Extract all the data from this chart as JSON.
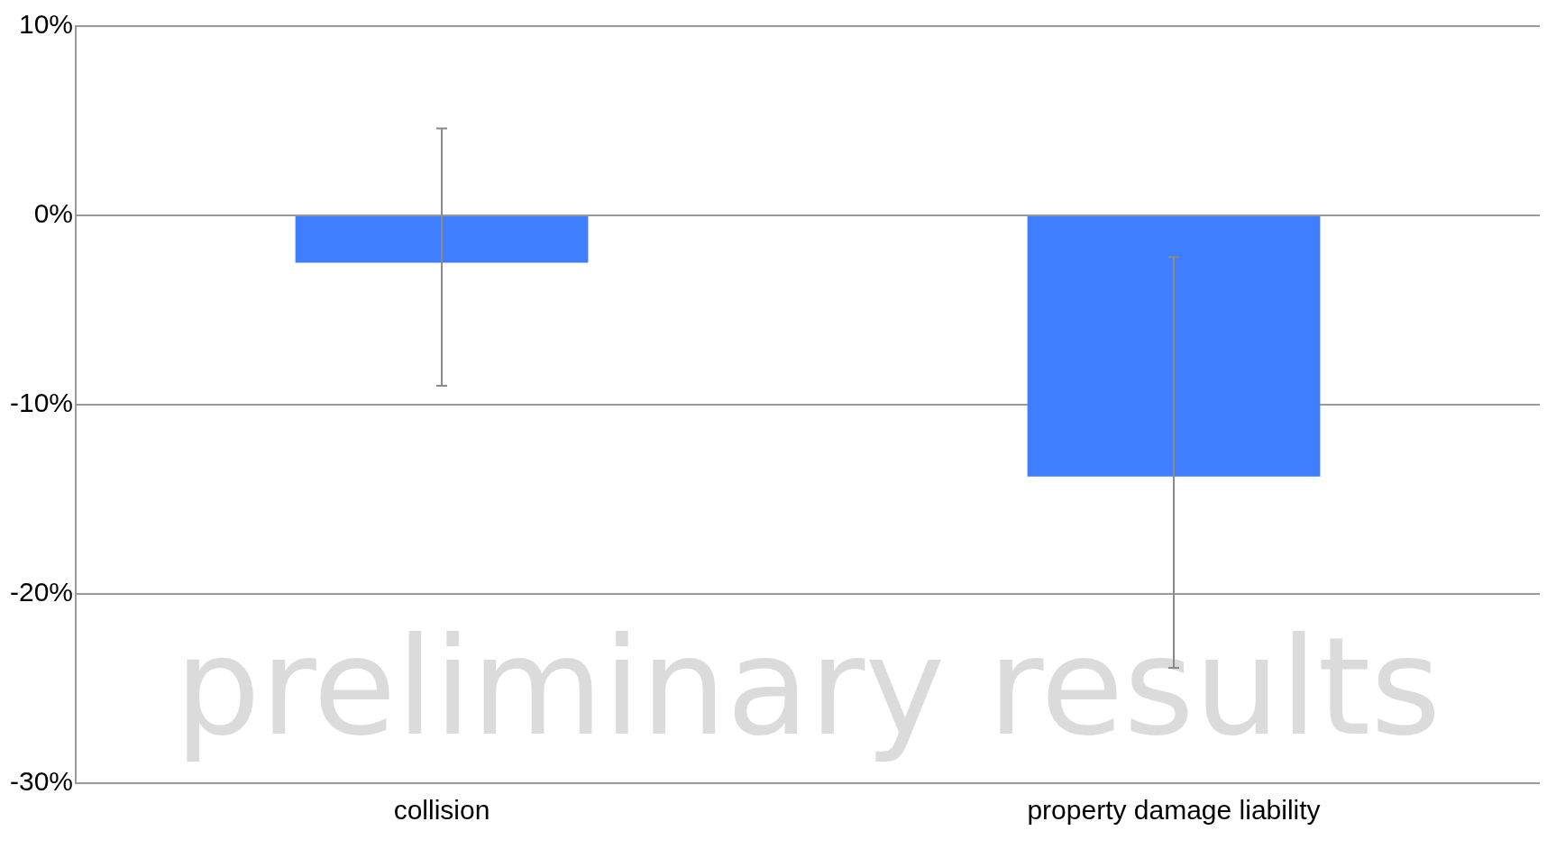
{
  "chart_data": {
    "type": "bar",
    "categories": [
      "collision",
      "property damage liability"
    ],
    "values": [
      -2.5,
      -13.8
    ],
    "color": "#3f7fff",
    "errors": [
      [
        -9.0,
        4.6
      ],
      [
        -23.9,
        -2.2
      ]
    ],
    "ylim": [
      -30,
      10
    ],
    "yticks": [
      {
        "value": -30,
        "label": "-30%"
      },
      {
        "value": -20,
        "label": "-20%"
      },
      {
        "value": -10,
        "label": "-10%"
      },
      {
        "value": 0,
        "label": "0%"
      },
      {
        "value": 10,
        "label": "10%"
      }
    ],
    "grid": "y",
    "annotations": [
      "preliminary results"
    ]
  }
}
